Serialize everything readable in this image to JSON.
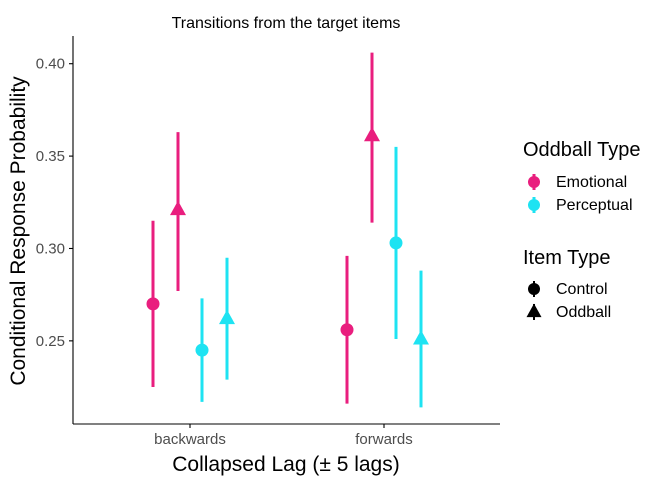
{
  "chart_data": {
    "type": "scatter",
    "title": "Transitions from the target items",
    "xlabel": "Collapsed Lag (± 5 lags)",
    "ylabel": "Conditional Response Probability",
    "categories": [
      "backwards",
      "forwards"
    ],
    "ylim": [
      0.205,
      0.415
    ],
    "yticks": [
      "0.25",
      "0.30",
      "0.35",
      "0.40"
    ],
    "grid": false,
    "legend_placement": "right",
    "series": [
      {
        "oddball_type": "Emotional",
        "item_type": "Control",
        "color": "#e91e7e",
        "shape": "circle",
        "points": [
          {
            "x": "backwards",
            "y": 0.27,
            "low": 0.225,
            "high": 0.315
          },
          {
            "x": "forwards",
            "y": 0.256,
            "low": 0.216,
            "high": 0.296
          }
        ]
      },
      {
        "oddball_type": "Emotional",
        "item_type": "Oddball",
        "color": "#e91e7e",
        "shape": "triangle",
        "points": [
          {
            "x": "backwards",
            "y": 0.321,
            "low": 0.277,
            "high": 0.363
          },
          {
            "x": "forwards",
            "y": 0.361,
            "low": 0.314,
            "high": 0.406
          }
        ]
      },
      {
        "oddball_type": "Perceptual",
        "item_type": "Control",
        "color": "#1ee3f2",
        "shape": "circle",
        "points": [
          {
            "x": "backwards",
            "y": 0.245,
            "low": 0.217,
            "high": 0.273
          },
          {
            "x": "forwards",
            "y": 0.303,
            "low": 0.251,
            "high": 0.355
          }
        ]
      },
      {
        "oddball_type": "Perceptual",
        "item_type": "Oddball",
        "color": "#1ee3f2",
        "shape": "triangle",
        "points": [
          {
            "x": "backwards",
            "y": 0.262,
            "low": 0.229,
            "high": 0.295
          },
          {
            "x": "forwards",
            "y": 0.251,
            "low": 0.214,
            "high": 0.288
          }
        ]
      }
    ],
    "legends": [
      {
        "title": "Oddball Type",
        "items": [
          {
            "label": "Emotional",
            "color": "#e91e7e",
            "shape": "circle"
          },
          {
            "label": "Perceptual",
            "color": "#1ee3f2",
            "shape": "circle"
          }
        ]
      },
      {
        "title": "Item Type",
        "items": [
          {
            "label": "Control",
            "color": "#000000",
            "shape": "circle"
          },
          {
            "label": "Oddball",
            "color": "#000000",
            "shape": "triangle"
          }
        ]
      }
    ]
  }
}
